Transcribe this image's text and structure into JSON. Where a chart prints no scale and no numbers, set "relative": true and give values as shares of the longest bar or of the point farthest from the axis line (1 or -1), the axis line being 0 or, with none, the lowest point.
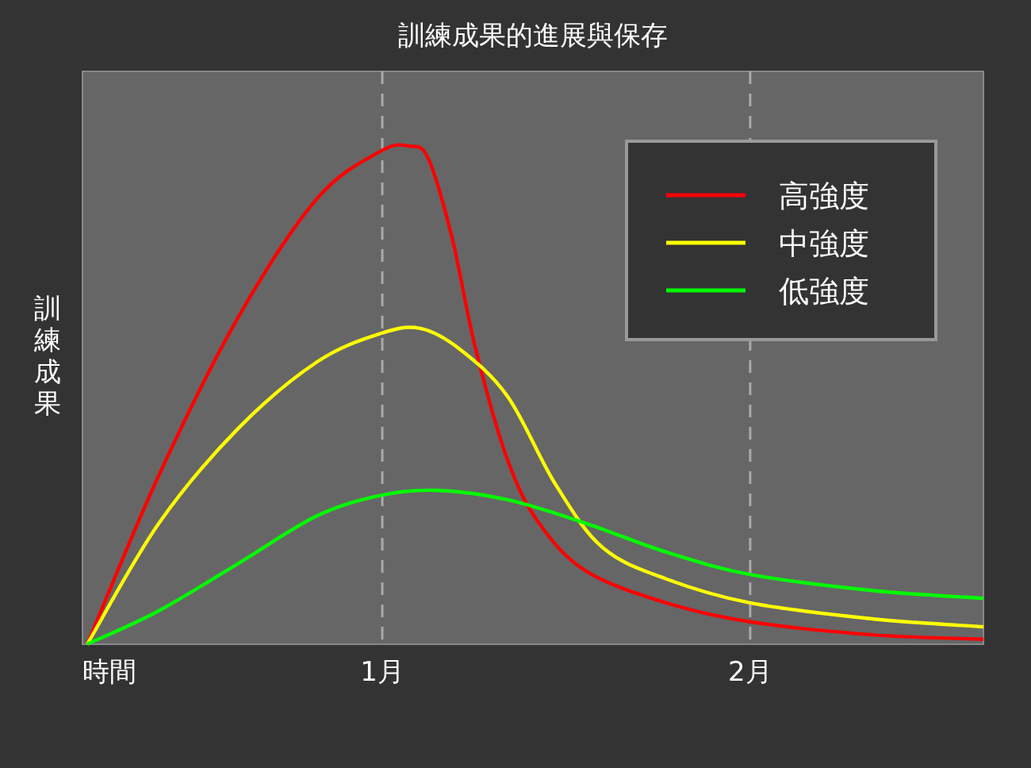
{
  "chart_data": {
    "type": "line",
    "title": "訓練成果的進展與保存",
    "xlabel": "時間",
    "ylabel": "訓練成果",
    "relative": true,
    "xlim": [
      0.185,
      2.634
    ],
    "xticks": [
      {
        "value": 1,
        "label": "1月"
      },
      {
        "value": 2,
        "label": "2月"
      }
    ],
    "grid": "x",
    "legend": "top right",
    "marker": "none",
    "line_style": "solid",
    "series": [
      {
        "name": "高強度",
        "color": "#ff0000",
        "x": [
          0.198,
          0.392,
          0.608,
          0.823,
          0.996,
          1.073,
          1.125,
          1.19,
          1.254,
          1.341,
          1.427,
          1.556,
          1.772,
          2.0,
          2.332,
          2.634
        ],
        "values": [
          0,
          0.338,
          0.656,
          0.895,
          0.99,
          1.0,
          0.975,
          0.815,
          0.592,
          0.369,
          0.242,
          0.146,
          0.083,
          0.045,
          0.019,
          0.01
        ]
      },
      {
        "name": "中強度",
        "color": "#ffff00",
        "x": [
          0.198,
          0.392,
          0.608,
          0.823,
          0.996,
          1.103,
          1.211,
          1.341,
          1.47,
          1.599,
          1.772,
          2.0,
          2.332,
          2.634
        ],
        "values": [
          0,
          0.242,
          0.433,
          0.567,
          0.624,
          0.634,
          0.592,
          0.497,
          0.322,
          0.194,
          0.131,
          0.083,
          0.051,
          0.035
        ]
      },
      {
        "name": "低強度",
        "color": "#00ff00",
        "x": [
          0.198,
          0.392,
          0.608,
          0.823,
          0.996,
          1.147,
          1.341,
          1.556,
          1.772,
          2.0,
          2.332,
          2.634
        ],
        "values": [
          0,
          0.067,
          0.162,
          0.258,
          0.299,
          0.309,
          0.29,
          0.242,
          0.185,
          0.14,
          0.108,
          0.092
        ]
      }
    ]
  }
}
